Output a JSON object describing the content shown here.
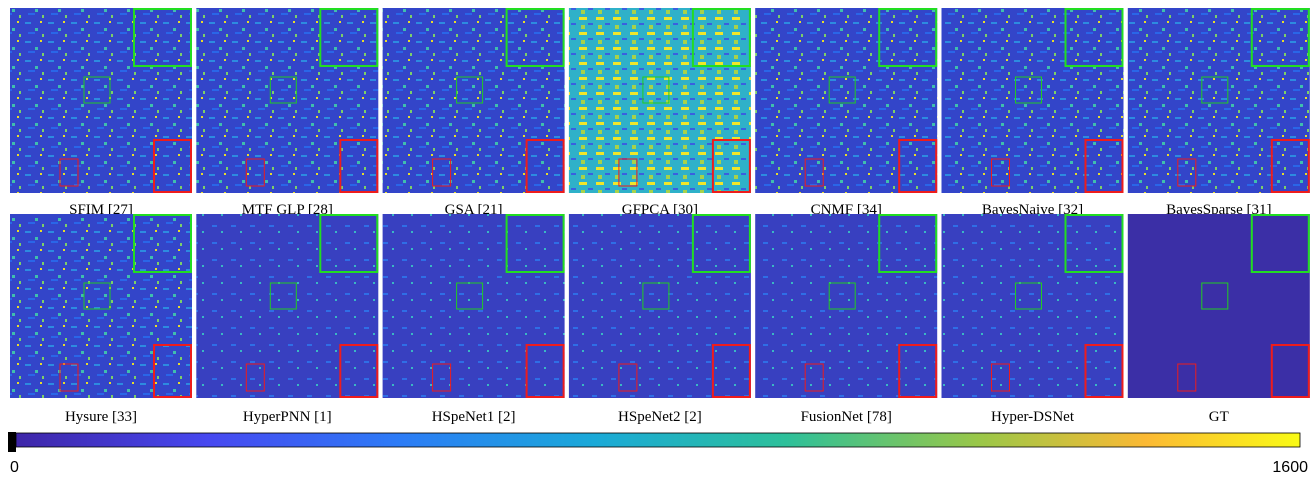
{
  "figure": {
    "panels": [
      {
        "label": "SFIM [27]"
      },
      {
        "label": "MTF GLP [28]"
      },
      {
        "label": "GSA [21]"
      },
      {
        "label": "GFPCA [30]"
      },
      {
        "label": "CNMF [34]"
      },
      {
        "label": "BayesNaive [32]"
      },
      {
        "label": "BayesSparse [31]"
      },
      {
        "label": "Hysure [33]"
      },
      {
        "label": "HyperPNN [1]"
      },
      {
        "label": "HSpeNet1 [2]"
      },
      {
        "label": "HSpeNet2 [2]"
      },
      {
        "label": "FusionNet [78]"
      },
      {
        "label": "Hyper-DSNet"
      },
      {
        "label": "GT"
      }
    ],
    "colorbar": {
      "min": 0,
      "max": 1600
    }
  }
}
